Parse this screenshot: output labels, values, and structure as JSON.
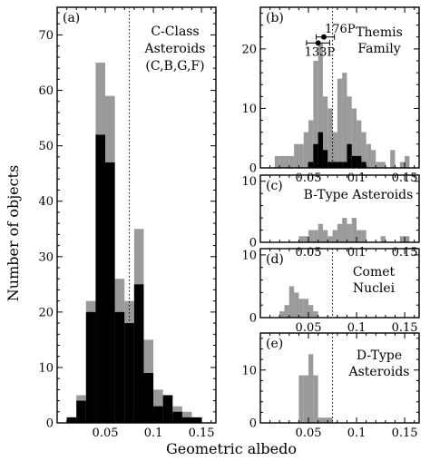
{
  "chart_data": {
    "type": "histogram",
    "ylabel": "Number of objects",
    "xlabel": "Geometric albedo",
    "colors": {
      "gray": "#9a9a9a",
      "black": "#000000"
    },
    "panels": [
      {
        "id": "a",
        "tag": "(a)",
        "title_lines": [
          "C-Class",
          "Asteroids",
          "(C,B,G,F)"
        ],
        "xlim": [
          0,
          0.165
        ],
        "ylim": [
          0,
          75
        ],
        "xticks": [
          0.05,
          0.1,
          0.15
        ],
        "xtick_labels": [
          "0.05",
          "0.1",
          "0.15"
        ],
        "yticks": [
          0,
          10,
          20,
          30,
          40,
          50,
          60,
          70
        ],
        "ytick_labels": [
          "0",
          "10",
          "20",
          "30",
          "40",
          "50",
          "60",
          "70"
        ],
        "vline": 0.075,
        "bin_width": 0.01,
        "bins_start": [
          0.01,
          0.02,
          0.03,
          0.04,
          0.05,
          0.06,
          0.07,
          0.08,
          0.09,
          0.1,
          0.11,
          0.12,
          0.13,
          0.14,
          0.15
        ],
        "gray": [
          1,
          5,
          22,
          65,
          59,
          26,
          22,
          35,
          15,
          6,
          5,
          3,
          2,
          1,
          0
        ],
        "black": [
          1,
          4,
          20,
          52,
          47,
          20,
          18,
          25,
          9,
          3,
          5,
          2,
          1,
          1,
          0
        ]
      },
      {
        "id": "b",
        "tag": "(b)",
        "title_lines": [
          "Themis",
          "Family"
        ],
        "xlim": [
          0,
          0.165
        ],
        "ylim": [
          0,
          27
        ],
        "xticks": [
          0.05,
          0.1,
          0.15
        ],
        "xtick_labels": [
          "0.05",
          "0.1",
          "0.15"
        ],
        "yticks": [
          0,
          10,
          20
        ],
        "ytick_labels": [
          "0",
          "10",
          "20"
        ],
        "vline": 0.075,
        "bin_width": 0.005,
        "bins_start": [
          0.01,
          0.015,
          0.02,
          0.025,
          0.03,
          0.035,
          0.04,
          0.045,
          0.05,
          0.055,
          0.06,
          0.065,
          0.07,
          0.075,
          0.08,
          0.085,
          0.09,
          0.095,
          0.1,
          0.105,
          0.11,
          0.115,
          0.12,
          0.125,
          0.13,
          0.135,
          0.14,
          0.145,
          0.15,
          0.155
        ],
        "gray": [
          0,
          2,
          2,
          2,
          2,
          4,
          4,
          6,
          8,
          18,
          21,
          12,
          10,
          6,
          15,
          16,
          12,
          10,
          8,
          6,
          4,
          3,
          1,
          1,
          0,
          3,
          0,
          1,
          2,
          0
        ],
        "black": [
          0,
          0,
          0,
          0,
          0,
          0,
          0,
          0,
          1,
          4,
          6,
          3,
          1,
          1,
          1,
          1,
          4,
          2,
          2,
          1,
          0,
          0,
          0,
          0,
          0,
          0,
          0,
          0,
          0,
          0
        ],
        "annotations": [
          {
            "label": "176P",
            "x": 0.066,
            "y": 22,
            "xerr": [
              0.058,
              0.077
            ]
          },
          {
            "label": "133P",
            "x": 0.06,
            "y": 21,
            "xerr": [
              0.048,
              0.072
            ]
          }
        ]
      },
      {
        "id": "c",
        "tag": "(c)",
        "title_lines": [
          "B-Type Asteroids"
        ],
        "xlim": [
          0,
          0.165
        ],
        "ylim": [
          0,
          11
        ],
        "xticks": [
          0.05,
          0.1,
          0.15
        ],
        "xtick_labels": [
          "0.05",
          "0.1",
          "0.15"
        ],
        "yticks": [
          0,
          10
        ],
        "ytick_labels": [
          "0",
          "10"
        ],
        "vline": null,
        "bin_width": 0.005,
        "bins_start": [
          0.04,
          0.045,
          0.05,
          0.055,
          0.06,
          0.065,
          0.07,
          0.075,
          0.08,
          0.085,
          0.09,
          0.095,
          0.1,
          0.105,
          0.11,
          0.115,
          0.12,
          0.125,
          0.13,
          0.135,
          0.14,
          0.145,
          0.15,
          0.155
        ],
        "gray": [
          1,
          1,
          2,
          2,
          3,
          2,
          1,
          2,
          3,
          4,
          3,
          4,
          2,
          2,
          0,
          0,
          0,
          1,
          0,
          0,
          0,
          1,
          1,
          0
        ],
        "black": []
      },
      {
        "id": "d",
        "tag": "(d)",
        "title_lines": [
          "Comet",
          "Nuclei"
        ],
        "xlim": [
          0,
          0.165
        ],
        "ylim": [
          0,
          11
        ],
        "xticks": [
          0.05,
          0.1,
          0.15
        ],
        "xtick_labels": [
          "0.05",
          "0.1",
          "0.15"
        ],
        "yticks": [
          0,
          10
        ],
        "ytick_labels": [
          "0",
          "10"
        ],
        "vline": 0.075,
        "bin_width": 0.005,
        "bins_start": [
          0.02,
          0.025,
          0.03,
          0.035,
          0.04,
          0.045,
          0.05,
          0.055
        ],
        "gray": [
          1,
          2,
          5,
          4,
          3,
          3,
          2,
          1
        ],
        "black": []
      },
      {
        "id": "e",
        "tag": "(e)",
        "title_lines": [
          "D-Type",
          "Asteroids"
        ],
        "xlim": [
          0,
          0.165
        ],
        "ylim": [
          0,
          17
        ],
        "xticks": [
          0.05,
          0.1,
          0.15
        ],
        "xtick_labels": [
          "0.05",
          "0.1",
          "0.15"
        ],
        "yticks": [
          0,
          10
        ],
        "ytick_labels": [
          "0",
          "10"
        ],
        "vline": 0.075,
        "bin_width": 0.005,
        "bins_start": [
          0.035,
          0.04,
          0.045,
          0.05,
          0.055,
          0.06,
          0.065,
          0.07,
          0.075
        ],
        "gray": [
          0,
          9,
          9,
          13,
          9,
          1,
          1,
          1,
          0
        ],
        "black": []
      }
    ]
  }
}
